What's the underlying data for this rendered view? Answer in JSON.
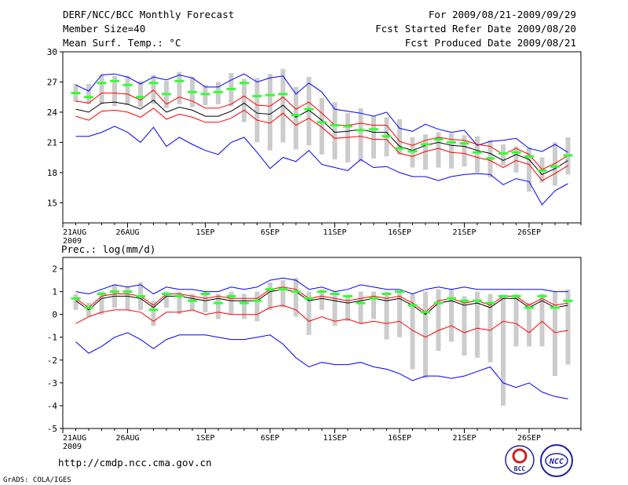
{
  "header": {
    "title": "DERF/NCC/BCC Monthly Forecast",
    "member_size": "Member Size=40",
    "variable": "Mean Surf. Temp.: °C",
    "forecast_period": "For 2009/08/21-2009/09/29",
    "start_refer_date": "Fcst Started Refer Date 2009/08/20",
    "produced_date": "Fcst Produced Date 2009/08/21"
  },
  "footer": {
    "url": "http://cmdp.ncc.cma.gov.cn",
    "credit": "GrADS: COLA/IGES",
    "logo_left_text": "BCC",
    "logo_right_text": "NCC"
  },
  "colors": {
    "envelope": "#0000ff",
    "spread": "#ff0000",
    "mean": "#000000",
    "box": "#cccccc",
    "median": "#33ff33"
  },
  "chart_data": [
    {
      "type": "line",
      "title": "Mean Surf. Temp.: °C",
      "ylim": [
        13,
        30
      ],
      "yticks": [
        15,
        18,
        21,
        24,
        27,
        30
      ],
      "xlim": [
        0,
        40
      ],
      "xticks": [
        {
          "x": 0,
          "label": "21AUG",
          "sub": "2009"
        },
        {
          "x": 5,
          "label": "26AUG",
          "sub": ""
        },
        {
          "x": 11,
          "label": "1SEP",
          "sub": ""
        },
        {
          "x": 16,
          "label": "6SEP",
          "sub": ""
        },
        {
          "x": 21,
          "label": "11SEP",
          "sub": ""
        },
        {
          "x": 26,
          "label": "16SEP",
          "sub": ""
        },
        {
          "x": 31,
          "label": "21SEP",
          "sub": ""
        },
        {
          "x": 36,
          "label": "26SEP",
          "sub": ""
        }
      ],
      "days": [
        1,
        2,
        3,
        4,
        5,
        6,
        7,
        8,
        9,
        10,
        11,
        12,
        13,
        14,
        15,
        16,
        17,
        18,
        19,
        20,
        21,
        22,
        23,
        24,
        25,
        26,
        27,
        28,
        29,
        30,
        31,
        32,
        33,
        34,
        35,
        36,
        37,
        38,
        39
      ],
      "boxes": [
        [
          25,
          26.8
        ],
        [
          24.8,
          26.8
        ],
        [
          24.8,
          27.7
        ],
        [
          24.6,
          27.6
        ],
        [
          24.7,
          27.6
        ],
        [
          24.5,
          27.1
        ],
        [
          24.8,
          27.7
        ],
        [
          24.4,
          27.1
        ],
        [
          24.8,
          28.0
        ],
        [
          24.5,
          27.5
        ],
        [
          24.7,
          26.7
        ],
        [
          24.8,
          27.0
        ],
        [
          24.6,
          27.9
        ],
        [
          23.0,
          27.3
        ],
        [
          21.0,
          27.4
        ],
        [
          20.2,
          27.8
        ],
        [
          21.0,
          28.3
        ],
        [
          20.3,
          26.5
        ],
        [
          20.7,
          27.5
        ],
        [
          19.8,
          25.4
        ],
        [
          19.3,
          25.0
        ],
        [
          19.0,
          23.9
        ],
        [
          19.1,
          24.4
        ],
        [
          19.4,
          23.6
        ],
        [
          19.6,
          23.5
        ],
        [
          19.8,
          23.3
        ],
        [
          18.5,
          21.5
        ],
        [
          18.3,
          21.8
        ],
        [
          18.5,
          22.0
        ],
        [
          18.4,
          21.9
        ],
        [
          18.6,
          21.7
        ],
        [
          18.0,
          21.6
        ],
        [
          17.5,
          21.2
        ],
        [
          18.7,
          20.8
        ],
        [
          18.0,
          20.6
        ],
        [
          16.1,
          20.5
        ],
        [
          17.0,
          19.5
        ],
        [
          16.7,
          21.0
        ],
        [
          17.8,
          21.5
        ]
      ],
      "series": [
        {
          "name": "ensemble max",
          "color": "#0000ff",
          "values": [
            26.7,
            26.1,
            27.7,
            27.8,
            27.5,
            26.8,
            27.5,
            27.2,
            27.7,
            27.4,
            26.5,
            26.5,
            27.2,
            27.8,
            27.0,
            27.4,
            27.6,
            25.8,
            26.9,
            26.0,
            24.3,
            24.1,
            23.9,
            23.6,
            24.0,
            22.4,
            22.1,
            22.8,
            22.3,
            22.0,
            22.2,
            20.7,
            21.1,
            21.2,
            21.4,
            20.4,
            20.1,
            20.8,
            20.0
          ]
        },
        {
          "name": "spread upper",
          "color": "#ff0000",
          "values": [
            25.1,
            24.9,
            25.9,
            25.9,
            25.8,
            25.2,
            26.2,
            24.8,
            25.5,
            25.1,
            24.4,
            24.4,
            24.8,
            25.6,
            24.7,
            24.6,
            25.5,
            24.3,
            25.0,
            23.9,
            22.7,
            22.7,
            22.9,
            22.7,
            22.7,
            21.1,
            20.7,
            21.2,
            21.5,
            21.3,
            21.2,
            20.8,
            20.6,
            19.8,
            20.4,
            19.8,
            18.3,
            18.9,
            19.7
          ]
        },
        {
          "name": "ensemble mean",
          "color": "#000000",
          "values": [
            24.3,
            24.0,
            24.9,
            25.0,
            24.8,
            24.3,
            25.2,
            24.0,
            24.5,
            24.2,
            23.6,
            23.6,
            24.1,
            24.9,
            23.9,
            23.8,
            24.7,
            23.5,
            24.2,
            23.2,
            22.0,
            22.1,
            22.3,
            22.0,
            22.0,
            20.6,
            20.2,
            20.7,
            21.0,
            20.7,
            20.6,
            20.2,
            19.9,
            19.2,
            19.8,
            19.3,
            17.8,
            18.4,
            19.2
          ]
        },
        {
          "name": "spread lower",
          "color": "#ff0000",
          "values": [
            23.6,
            23.2,
            24.1,
            24.2,
            24.0,
            23.5,
            24.4,
            23.3,
            23.8,
            23.5,
            23.0,
            23.0,
            23.4,
            24.2,
            23.2,
            22.9,
            23.9,
            22.7,
            23.4,
            22.5,
            21.4,
            21.5,
            21.6,
            21.3,
            21.3,
            19.9,
            19.6,
            20.1,
            20.4,
            20.0,
            19.9,
            19.5,
            19.2,
            18.5,
            19.2,
            18.8,
            17.2,
            17.9,
            18.7
          ]
        },
        {
          "name": "ensemble min",
          "color": "#0000ff",
          "values": [
            21.6,
            21.6,
            22.0,
            22.6,
            22.0,
            21.0,
            22.5,
            20.6,
            21.5,
            20.8,
            20.2,
            19.8,
            21.0,
            21.5,
            20.0,
            18.4,
            19.5,
            19.1,
            20.2,
            18.8,
            18.5,
            18.2,
            19.3,
            18.5,
            18.6,
            18.0,
            17.6,
            17.6,
            17.2,
            17.6,
            17.8,
            17.9,
            17.8,
            16.8,
            17.4,
            17.1,
            14.8,
            16.2,
            16.9
          ]
        }
      ],
      "medians": [
        25.9,
        25.5,
        26.9,
        27.1,
        26.7,
        25.5,
        26.9,
        25.8,
        27.1,
        26.0,
        25.8,
        26.0,
        26.3,
        26.9,
        25.6,
        25.7,
        25.8,
        23.7,
        24.3,
        23.0,
        22.7,
        22.6,
        22.2,
        22.3,
        21.6,
        20.4,
        20.1,
        20.8,
        21.3,
        21.0,
        20.9,
        20.0,
        19.4,
        19.9,
        20.0,
        19.6,
        18.2,
        18.6,
        19.7
      ]
    },
    {
      "type": "line",
      "title": "Prec.: log(mm/d)",
      "ylim": [
        -5,
        2.5
      ],
      "yticks": [
        -5,
        -4,
        -3,
        -2,
        -1,
        0,
        1,
        2
      ],
      "xlim": [
        0,
        40
      ],
      "xticks": [
        {
          "x": 0,
          "label": "21AUG",
          "sub": "2009"
        },
        {
          "x": 5,
          "label": "26AUG",
          "sub": ""
        },
        {
          "x": 11,
          "label": "1SEP",
          "sub": ""
        },
        {
          "x": 16,
          "label": "6SEP",
          "sub": ""
        },
        {
          "x": 21,
          "label": "11SEP",
          "sub": ""
        },
        {
          "x": 26,
          "label": "16SEP",
          "sub": ""
        },
        {
          "x": 31,
          "label": "21SEP",
          "sub": ""
        },
        {
          "x": 36,
          "label": "26SEP",
          "sub": ""
        }
      ],
      "days": [
        1,
        2,
        3,
        4,
        5,
        6,
        7,
        8,
        9,
        10,
        11,
        12,
        13,
        14,
        15,
        16,
        17,
        18,
        19,
        20,
        21,
        22,
        23,
        24,
        25,
        26,
        27,
        28,
        29,
        30,
        31,
        32,
        33,
        34,
        35,
        36,
        37,
        38,
        39
      ],
      "boxes": [
        [
          0.2,
          0.9
        ],
        [
          -0.1,
          0.5
        ],
        [
          0.0,
          1.0
        ],
        [
          0.3,
          1.3
        ],
        [
          0.2,
          1.2
        ],
        [
          0.2,
          1.4
        ],
        [
          -0.5,
          0.6
        ],
        [
          0.3,
          1.0
        ],
        [
          0.0,
          1.0
        ],
        [
          0.2,
          0.9
        ],
        [
          0.1,
          1.0
        ],
        [
          -0.2,
          0.9
        ],
        [
          0.0,
          1.0
        ],
        [
          -0.2,
          0.9
        ],
        [
          -0.3,
          1.0
        ],
        [
          0.2,
          1.4
        ],
        [
          0.3,
          1.5
        ],
        [
          -0.1,
          1.6
        ],
        [
          -0.9,
          1.0
        ],
        [
          0.2,
          1.1
        ],
        [
          -0.5,
          1.0
        ],
        [
          -0.3,
          0.8
        ],
        [
          -0.4,
          1.0
        ],
        [
          -0.2,
          1.0
        ],
        [
          -1.1,
          1.0
        ],
        [
          -1.0,
          1.0
        ],
        [
          -2.4,
          0.9
        ],
        [
          -2.8,
          1.0
        ],
        [
          -1.6,
          1.1
        ],
        [
          -1.2,
          1.1
        ],
        [
          -1.8,
          0.8
        ],
        [
          -1.9,
          1.0
        ],
        [
          -2.1,
          0.9
        ],
        [
          -4.0,
          0.8
        ],
        [
          -1.4,
          0.9
        ],
        [
          -1.4,
          0.5
        ],
        [
          -1.4,
          0.9
        ],
        [
          -2.7,
          1.0
        ],
        [
          -2.2,
          1.1
        ]
      ],
      "series": [
        {
          "name": "ensemble max",
          "color": "#0000ff",
          "values": [
            1.0,
            0.9,
            1.1,
            1.3,
            1.2,
            1.3,
            0.9,
            1.2,
            1.1,
            1.1,
            1.0,
            1.0,
            1.2,
            1.1,
            1.2,
            1.5,
            1.6,
            1.5,
            1.1,
            1.2,
            1.0,
            1.1,
            1.3,
            1.2,
            1.1,
            1.1,
            0.9,
            1.1,
            1.2,
            1.1,
            1.2,
            1.1,
            1.1,
            1.1,
            1.1,
            1.1,
            1.1,
            1.0,
            1.0
          ]
        },
        {
          "name": "spread upper",
          "color": "#ff0000",
          "values": [
            0.7,
            0.3,
            0.8,
            0.9,
            0.9,
            0.8,
            0.4,
            0.9,
            0.9,
            0.8,
            0.7,
            0.8,
            0.7,
            0.7,
            0.7,
            1.1,
            1.2,
            1.1,
            0.7,
            0.8,
            0.7,
            0.6,
            0.7,
            0.8,
            0.7,
            0.8,
            0.5,
            0.1,
            0.6,
            0.7,
            0.5,
            0.6,
            0.4,
            0.8,
            0.8,
            0.4,
            0.7,
            0.4,
            0.5
          ]
        },
        {
          "name": "ensemble mean",
          "color": "#000000",
          "values": [
            0.6,
            0.2,
            0.7,
            0.8,
            0.8,
            0.7,
            0.3,
            0.8,
            0.8,
            0.7,
            0.6,
            0.7,
            0.6,
            0.6,
            0.6,
            1.0,
            1.1,
            1.0,
            0.6,
            0.7,
            0.6,
            0.5,
            0.6,
            0.7,
            0.6,
            0.7,
            0.4,
            0.0,
            0.5,
            0.6,
            0.4,
            0.5,
            0.3,
            0.7,
            0.7,
            0.3,
            0.6,
            0.3,
            0.4
          ]
        },
        {
          "name": "spread lower",
          "color": "#ff0000",
          "values": [
            -0.4,
            -0.1,
            0.1,
            0.2,
            0.2,
            0.1,
            -0.3,
            0.1,
            0.1,
            0.2,
            0.0,
            0.1,
            0.0,
            0.0,
            0.0,
            0.3,
            0.4,
            0.2,
            -0.3,
            -0.1,
            -0.3,
            -0.2,
            -0.4,
            -0.3,
            -0.4,
            -0.3,
            -0.7,
            -1.0,
            -0.7,
            -0.5,
            -0.8,
            -0.6,
            -0.7,
            -0.3,
            -0.4,
            -0.8,
            -0.3,
            -0.8,
            -0.7
          ]
        },
        {
          "name": "ensemble min",
          "color": "#0000ff",
          "values": [
            -1.2,
            -1.7,
            -1.4,
            -1.0,
            -0.8,
            -1.1,
            -1.5,
            -1.1,
            -0.9,
            -0.9,
            -0.9,
            -1.0,
            -1.1,
            -1.1,
            -1.0,
            -0.9,
            -1.3,
            -1.9,
            -2.3,
            -2.1,
            -2.2,
            -2.2,
            -2.1,
            -2.3,
            -2.4,
            -2.6,
            -2.9,
            -2.7,
            -2.7,
            -2.8,
            -2.7,
            -2.5,
            -2.3,
            -3.0,
            -3.2,
            -3.0,
            -3.4,
            -3.6,
            -3.7
          ]
        }
      ],
      "medians": [
        0.7,
        0.3,
        0.9,
        1.0,
        1.0,
        0.8,
        0.2,
        0.9,
        0.8,
        0.6,
        0.9,
        0.5,
        0.8,
        0.5,
        0.6,
        1.1,
        1.1,
        1.0,
        0.7,
        1.0,
        0.9,
        0.8,
        0.5,
        0.7,
        0.9,
        1.0,
        0.4,
        0.1,
        0.5,
        0.7,
        0.6,
        0.6,
        0.5,
        0.8,
        0.8,
        0.3,
        0.8,
        0.3,
        0.6
      ]
    }
  ]
}
